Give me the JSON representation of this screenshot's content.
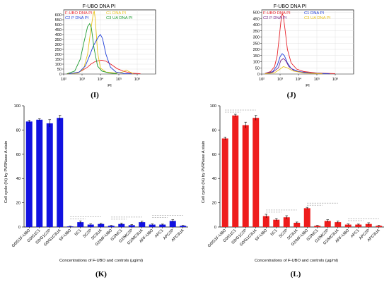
{
  "figure_letters": {
    "I": "(I)",
    "J": "(J)",
    "K": "(K)",
    "L": "(L)"
  },
  "chart_data": [
    {
      "id": "I",
      "type": "line",
      "title": "F-UBO DNA PI",
      "xlabel": "PI",
      "ylabel": "",
      "x_scale": "log",
      "xlim": [
        100,
        10000000
      ],
      "ylim": [
        0,
        650
      ],
      "x_ticks": [
        {
          "v": 100,
          "label": "10²"
        },
        {
          "v": 1000,
          "label": "10³"
        },
        {
          "v": 10000,
          "label": "10⁴"
        },
        {
          "v": 100000,
          "label": "10⁵"
        },
        {
          "v": 1000000,
          "label": "10⁶"
        }
      ],
      "y_ticks": [
        0,
        50,
        100,
        150,
        200,
        250,
        300,
        350,
        400,
        450,
        500,
        550,
        600
      ],
      "legend": [
        {
          "name": "F-UBO DNA PI",
          "color": "#e8232a"
        },
        {
          "name": "C1 DNA PI",
          "color": "#e8c21a"
        },
        {
          "name": "C2 P DNA PI",
          "color": "#1c3cd8"
        },
        {
          "name": "C3 UA DNA PI",
          "color": "#1b9a2e"
        }
      ],
      "series": [
        {
          "name": "F-UBO DNA PI",
          "color": "#e8232a",
          "points": [
            [
              150,
              2
            ],
            [
              300,
              6
            ],
            [
              600,
              15
            ],
            [
              1000,
              35
            ],
            [
              2000,
              70
            ],
            [
              3000,
              100
            ],
            [
              5000,
              125
            ],
            [
              8000,
              135
            ],
            [
              12000,
              140
            ],
            [
              20000,
              130
            ],
            [
              40000,
              95
            ],
            [
              80000,
              55
            ],
            [
              200000,
              25
            ],
            [
              500000,
              8
            ],
            [
              1500000,
              3
            ]
          ]
        },
        {
          "name": "C1 DNA PI",
          "color": "#e8c21a",
          "points": [
            [
              200,
              2
            ],
            [
              600,
              10
            ],
            [
              1200,
              50
            ],
            [
              2000,
              200
            ],
            [
              3000,
              450
            ],
            [
              4000,
              600
            ],
            [
              4600,
              640
            ],
            [
              5200,
              560
            ],
            [
              7000,
              220
            ],
            [
              10000,
              60
            ],
            [
              20000,
              20
            ],
            [
              60000,
              10
            ],
            [
              150000,
              18
            ],
            [
              250000,
              40
            ],
            [
              350000,
              25
            ],
            [
              600000,
              5
            ]
          ]
        },
        {
          "name": "C2 P DNA PI",
          "color": "#1c3cd8",
          "points": [
            [
              200,
              2
            ],
            [
              700,
              20
            ],
            [
              1500,
              80
            ],
            [
              2500,
              180
            ],
            [
              4000,
              280
            ],
            [
              6000,
              340
            ],
            [
              8000,
              380
            ],
            [
              10000,
              400
            ],
            [
              13000,
              360
            ],
            [
              20000,
              200
            ],
            [
              35000,
              70
            ],
            [
              70000,
              20
            ],
            [
              200000,
              5
            ],
            [
              500000,
              2
            ]
          ]
        },
        {
          "name": "C3 UA DNA PI",
          "color": "#1b9a2e",
          "points": [
            [
              150,
              2
            ],
            [
              400,
              30
            ],
            [
              800,
              150
            ],
            [
              1300,
              330
            ],
            [
              2000,
              480
            ],
            [
              2600,
              510
            ],
            [
              3200,
              470
            ],
            [
              4500,
              260
            ],
            [
              7000,
              80
            ],
            [
              12000,
              30
            ],
            [
              30000,
              10
            ],
            [
              80000,
              3
            ]
          ]
        }
      ]
    },
    {
      "id": "J",
      "type": "line",
      "title": "F-UBO DNA PI",
      "xlabel": "PI",
      "ylabel": "",
      "x_scale": "log",
      "xlim": [
        100,
        10000000
      ],
      "ylim": [
        0,
        520
      ],
      "x_ticks": [
        {
          "v": 100,
          "label": "10²"
        },
        {
          "v": 1000,
          "label": "10³"
        },
        {
          "v": 10000,
          "label": "10⁴"
        },
        {
          "v": 100000,
          "label": "10⁵"
        },
        {
          "v": 1000000,
          "label": "10⁶"
        }
      ],
      "y_ticks": [
        0,
        50,
        100,
        150,
        200,
        250,
        300,
        350,
        400,
        450,
        500
      ],
      "legend": [
        {
          "name": "F-UBO DNA PI",
          "color": "#e8232a"
        },
        {
          "name": "C1 DNA PI",
          "color": "#1c3cd8"
        },
        {
          "name": "C2 P DNA PI",
          "color": "#7a2a8a"
        },
        {
          "name": "C3 UA DNA PI",
          "color": "#e8c21a"
        }
      ],
      "series": [
        {
          "name": "F-UBO DNA PI",
          "color": "#e8232a",
          "points": [
            [
              150,
              5
            ],
            [
              300,
              20
            ],
            [
              500,
              60
            ],
            [
              700,
              150
            ],
            [
              900,
              300
            ],
            [
              1100,
              420
            ],
            [
              1300,
              490
            ],
            [
              1500,
              470
            ],
            [
              1900,
              350
            ],
            [
              2500,
              200
            ],
            [
              4000,
              90
            ],
            [
              8000,
              40
            ],
            [
              20000,
              20
            ],
            [
              100000,
              8
            ],
            [
              1000000,
              3
            ]
          ]
        },
        {
          "name": "C1 DNA PI",
          "color": "#1c3cd8",
          "points": [
            [
              150,
              3
            ],
            [
              400,
              20
            ],
            [
              700,
              70
            ],
            [
              1000,
              140
            ],
            [
              1300,
              165
            ],
            [
              1700,
              150
            ],
            [
              2500,
              90
            ],
            [
              4000,
              45
            ],
            [
              10000,
              20
            ],
            [
              50000,
              8
            ],
            [
              500000,
              2
            ]
          ]
        },
        {
          "name": "C2 P DNA PI",
          "color": "#7a2a8a",
          "points": [
            [
              150,
              3
            ],
            [
              400,
              15
            ],
            [
              800,
              50
            ],
            [
              1100,
              110
            ],
            [
              1500,
              125
            ],
            [
              2000,
              110
            ],
            [
              3000,
              60
            ],
            [
              6000,
              25
            ],
            [
              20000,
              10
            ],
            [
              200000,
              3
            ]
          ]
        },
        {
          "name": "C3 UA DNA PI",
          "color": "#e8c21a",
          "points": [
            [
              150,
              2
            ],
            [
              500,
              10
            ],
            [
              1000,
              40
            ],
            [
              1500,
              60
            ],
            [
              2500,
              50
            ],
            [
              5000,
              25
            ],
            [
              20000,
              8
            ],
            [
              200000,
              2
            ]
          ]
        }
      ]
    },
    {
      "id": "K",
      "type": "bar",
      "color": "#1212e0",
      "xlabel": "Concentrations of F-UBO and controls (μg/ml)",
      "ylabel": "Cell cycle (%) by PI/RNase A stain",
      "ylim": [
        0,
        100
      ],
      "y_ticks": [
        0,
        20,
        40,
        60,
        80,
        100
      ],
      "categories": [
        "G0/G1F-UBO",
        "G0/G1C1",
        "G0/G1C2P",
        "G0/G1C3UA",
        "SF-UBO",
        "SC1",
        "SC2P",
        "SC3UA",
        "G2/MF-UBO",
        "G2/MC1",
        "G2/MC2P",
        "G2/MC3UA",
        "APF-UBO",
        "APC1",
        "APC2P",
        "APC3UA"
      ],
      "values": [
        87,
        88.5,
        85.5,
        90,
        0.5,
        4,
        2,
        2.5,
        1,
        2.5,
        1.5,
        4,
        2,
        2,
        5,
        1
      ],
      "errors": [
        1,
        0.8,
        3,
        2,
        0.2,
        1,
        0.5,
        0.5,
        0.3,
        0.7,
        0.5,
        0.7,
        0.5,
        0.4,
        1,
        0.3
      ]
    },
    {
      "id": "L",
      "type": "bar",
      "color": "#ee1c1c",
      "xlabel": "Concentrations of F-UBO and controls (μg/ml)",
      "ylabel": "Cell cycle (%) by PI/RNase A stain",
      "ylim": [
        0,
        100
      ],
      "y_ticks": [
        0,
        20,
        40,
        60,
        80,
        100
      ],
      "categories": [
        "G0/G1F-UBO",
        "G0/G1C1",
        "G0/G1C2P",
        "G0/G1C3UA",
        "SF-UBO",
        "SC1",
        "SC2P",
        "SC3UA",
        "G2/MF-UBO",
        "G2/MC1",
        "G2/MC2P",
        "G2/MC3UA",
        "APF-UBO",
        "APC1",
        "APC2P",
        "APC3UA"
      ],
      "values": [
        73,
        92,
        84,
        90,
        9,
        6,
        8,
        3.5,
        15.5,
        1,
        5,
        4,
        2,
        2,
        2.5,
        1
      ],
      "errors": [
        1.2,
        1,
        2.5,
        2,
        1.5,
        1,
        1.3,
        0.6,
        0.7,
        0.3,
        1,
        0.8,
        0.5,
        0.4,
        1,
        0.3
      ]
    }
  ]
}
